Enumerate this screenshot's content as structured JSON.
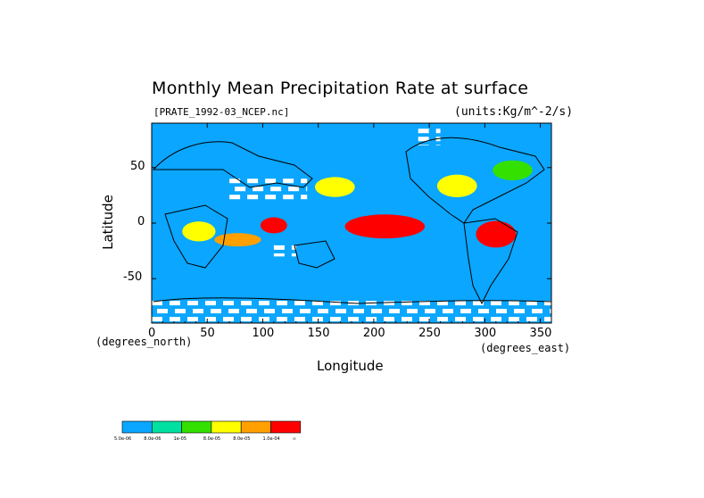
{
  "chart_data": {
    "type": "heatmap",
    "title": "Monthly Mean Precipitation Rate at surface",
    "subtitle_left": "[PRATE_1992-03_NCEP.nc]",
    "subtitle_right": "(units:Kg/m^-2/s)",
    "xlabel": "Longitude",
    "ylabel": "Latitude",
    "x_units": "(degrees_east)",
    "y_units": "(degrees_north)",
    "xlim": [
      0,
      360
    ],
    "ylim": [
      -90,
      90
    ],
    "x_ticks": [
      0,
      50,
      100,
      150,
      200,
      250,
      300,
      350
    ],
    "y_ticks": [
      -50,
      0,
      50
    ],
    "background_color": "#0aa6ff",
    "missing_color": "#ffffff",
    "colorbar": {
      "colors": [
        "#0aa6ff",
        "#00e0a0",
        "#33e000",
        "#ffff00",
        "#ffa000",
        "#ff0000"
      ],
      "labels": [
        "5.0e-06",
        "8.0e-06",
        "1e-05",
        "8.0e-05",
        "8.0e-05",
        "1.0e-04",
        "∞"
      ]
    },
    "regions": [
      {
        "level": 5,
        "lon": [
          180,
          240
        ],
        "lat": [
          -12,
          6
        ]
      },
      {
        "level": 5,
        "lon": [
          295,
          325
        ],
        "lat": [
          -20,
          0
        ]
      },
      {
        "level": 5,
        "lon": [
          100,
          120
        ],
        "lat": [
          -8,
          4
        ]
      },
      {
        "level": 4,
        "lon": [
          60,
          95
        ],
        "lat": [
          -20,
          -10
        ]
      },
      {
        "level": 3,
        "lon": [
          150,
          180
        ],
        "lat": [
          25,
          40
        ]
      },
      {
        "level": 3,
        "lon": [
          260,
          290
        ],
        "lat": [
          25,
          42
        ]
      },
      {
        "level": 2,
        "lon": [
          310,
          340
        ],
        "lat": [
          40,
          55
        ]
      },
      {
        "level": 3,
        "lon": [
          30,
          55
        ],
        "lat": [
          -15,
          0
        ]
      }
    ],
    "missing_regions": [
      {
        "lon": [
          0,
          360
        ],
        "lat": [
          -90,
          -70
        ]
      },
      {
        "lon": [
          70,
          140
        ],
        "lat": [
          20,
          40
        ]
      },
      {
        "lon": [
          240,
          260
        ],
        "lat": [
          70,
          85
        ]
      },
      {
        "lon": [
          110,
          130
        ],
        "lat": [
          -30,
          -20
        ]
      }
    ]
  }
}
